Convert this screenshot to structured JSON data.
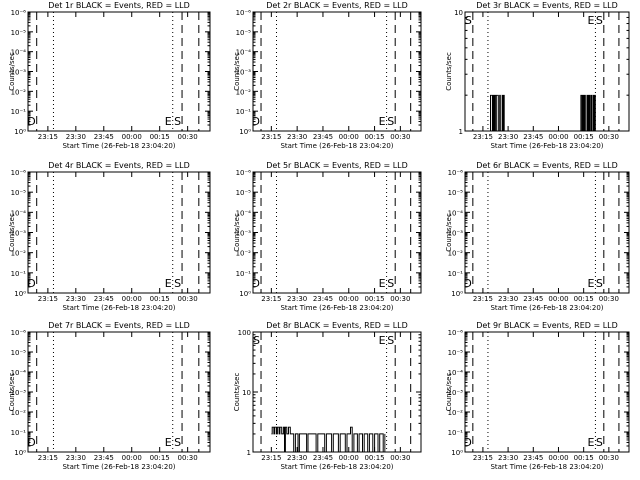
{
  "page": {
    "x_tick_labels": [
      "23:15",
      "23:30",
      "23:45",
      "00:00",
      "00:15",
      "00:30"
    ],
    "ylabel": "Counts/sec",
    "xlabel": "Start Time (26-Feb-18 23:04:20)"
  },
  "chart_data": [
    {
      "type": "line",
      "title": "Det 1r BLACK = Events, RED = LLD",
      "xlabel": "Start Time (26-Feb-18 23:04:20)",
      "ylabel": "Counts/sec",
      "x_range": [
        "23:04:20",
        "00:42:00"
      ],
      "y_scale": "log",
      "ylim": [
        1,
        1e-06
      ],
      "y_tick_labels": [
        "10⁰",
        "10⁻¹",
        "10⁻²",
        "10⁻³",
        "10⁻⁴",
        "10⁻⁵",
        "10⁻⁶"
      ],
      "markers": [
        {
          "label": "D",
          "style": "dashed",
          "x": "23:09"
        },
        {
          "label": "",
          "style": "dotted",
          "x": "23:18"
        },
        {
          "label": "E",
          "style": "dotted",
          "x": "00:22"
        },
        {
          "label": "S",
          "style": "dashed",
          "x": "00:27"
        },
        {
          "label": "",
          "style": "dashed",
          "x": "00:36"
        }
      ],
      "series": []
    },
    {
      "type": "line",
      "title": "Det 2r BLACK = Events, RED = LLD",
      "xlabel": "Start Time (26-Feb-18 23:04:20)",
      "ylabel": "Counts/sec",
      "x_range": [
        "23:04:20",
        "00:42:00"
      ],
      "y_scale": "log",
      "ylim": [
        1,
        1e-06
      ],
      "y_tick_labels": [
        "10⁰",
        "10⁻¹",
        "10⁻²",
        "10⁻³",
        "10⁻⁴",
        "10⁻⁵",
        "10⁻⁶"
      ],
      "markers": [
        {
          "label": "D",
          "style": "dashed",
          "x": "23:09"
        },
        {
          "label": "",
          "style": "dotted",
          "x": "23:18"
        },
        {
          "label": "E",
          "style": "dotted",
          "x": "00:22"
        },
        {
          "label": "S",
          "style": "dashed",
          "x": "00:27"
        },
        {
          "label": "",
          "style": "dashed",
          "x": "00:36"
        }
      ],
      "series": []
    },
    {
      "type": "line",
      "title": "Det 3r BLACK = Events, RED = LLD",
      "xlabel": "Start Time (26-Feb-18 23:04:20)",
      "ylabel": "Counts/sec",
      "x_range": [
        "23:04:20",
        "00:42:00"
      ],
      "y_scale": "log",
      "ylim": [
        1,
        10
      ],
      "y_tick_labels": [
        "1",
        "10"
      ],
      "markers": [
        {
          "label": "S",
          "style": "dashed",
          "x": "23:09"
        },
        {
          "label": "",
          "style": "dotted",
          "x": "23:18"
        },
        {
          "label": "E",
          "style": "dotted",
          "x": "00:22"
        },
        {
          "label": "S",
          "style": "dashed",
          "x": "00:27"
        },
        {
          "label": "",
          "style": "dashed",
          "x": "00:36"
        }
      ],
      "series": [
        {
          "name": "Events",
          "color": "#000000",
          "points": [
            [
              "23:19:00",
              1
            ],
            [
              "23:19:30",
              2
            ],
            [
              "23:20:30",
              2
            ],
            [
              "23:20:40",
              1
            ],
            [
              "23:21:00",
              2
            ],
            [
              "23:21:30",
              1
            ],
            [
              "23:22:00",
              2
            ],
            [
              "23:22:40",
              1
            ],
            [
              "23:23:00",
              2
            ],
            [
              "23:24:00",
              2
            ],
            [
              "23:24:10",
              1
            ],
            [
              "23:25:00",
              2
            ],
            [
              "23:25:20",
              1
            ],
            [
              "23:26:30",
              2
            ],
            [
              "23:26:50",
              1
            ],
            [
              "23:27:20",
              2
            ],
            [
              "23:27:40",
              1
            ],
            [
              "00:13:00",
              1
            ],
            [
              "00:13:20",
              2
            ],
            [
              "00:14:00",
              1
            ],
            [
              "00:14:30",
              2
            ],
            [
              "00:15:00",
              1
            ],
            [
              "00:15:30",
              2
            ],
            [
              "00:16:00",
              1
            ],
            [
              "00:17:00",
              2
            ],
            [
              "00:17:30",
              1
            ],
            [
              "00:18:00",
              2
            ],
            [
              "00:18:30",
              1
            ],
            [
              "00:19:10",
              2
            ],
            [
              "00:19:40",
              1
            ],
            [
              "00:20:30",
              2
            ],
            [
              "00:21:00",
              1
            ],
            [
              "00:21:30",
              2
            ],
            [
              "00:22:00",
              1
            ]
          ]
        }
      ]
    },
    {
      "type": "line",
      "title": "Det 4r BLACK = Events, RED = LLD",
      "xlabel": "Start Time (26-Feb-18 23:04:20)",
      "ylabel": "Counts/sec",
      "x_range": [
        "23:04:20",
        "00:42:00"
      ],
      "y_scale": "log",
      "ylim": [
        1,
        1e-06
      ],
      "y_tick_labels": [
        "10⁰",
        "10⁻¹",
        "10⁻²",
        "10⁻³",
        "10⁻⁴",
        "10⁻⁵",
        "10⁻⁶"
      ],
      "markers": [
        {
          "label": "D",
          "style": "dashed",
          "x": "23:09"
        },
        {
          "label": "",
          "style": "dotted",
          "x": "23:18"
        },
        {
          "label": "E",
          "style": "dotted",
          "x": "00:22"
        },
        {
          "label": "S",
          "style": "dashed",
          "x": "00:27"
        },
        {
          "label": "",
          "style": "dashed",
          "x": "00:36"
        }
      ],
      "series": []
    },
    {
      "type": "line",
      "title": "Det 5r BLACK = Events, RED = LLD",
      "xlabel": "Start Time (26-Feb-18 23:04:20)",
      "ylabel": "Counts/sec",
      "x_range": [
        "23:04:20",
        "00:42:00"
      ],
      "y_scale": "log",
      "ylim": [
        1,
        1e-06
      ],
      "y_tick_labels": [
        "10⁰",
        "10⁻¹",
        "10⁻²",
        "10⁻³",
        "10⁻⁴",
        "10⁻⁵",
        "10⁻⁶"
      ],
      "markers": [
        {
          "label": "D",
          "style": "dashed",
          "x": "23:09"
        },
        {
          "label": "",
          "style": "dotted",
          "x": "23:18"
        },
        {
          "label": "E",
          "style": "dotted",
          "x": "00:22"
        },
        {
          "label": "S",
          "style": "dashed",
          "x": "00:27"
        },
        {
          "label": "",
          "style": "dashed",
          "x": "00:36"
        }
      ],
      "series": []
    },
    {
      "type": "line",
      "title": "Det 6r BLACK = Events, RED = LLD",
      "xlabel": "Start Time (26-Feb-18 23:04:20)",
      "ylabel": "Counts/sec",
      "x_range": [
        "23:04:20",
        "00:42:00"
      ],
      "y_scale": "log",
      "ylim": [
        1,
        1e-06
      ],
      "y_tick_labels": [
        "10⁰",
        "10⁻¹",
        "10⁻²",
        "10⁻³",
        "10⁻⁴",
        "10⁻⁵",
        "10⁻⁶"
      ],
      "markers": [
        {
          "label": "D",
          "style": "dashed",
          "x": "23:09"
        },
        {
          "label": "",
          "style": "dotted",
          "x": "23:18"
        },
        {
          "label": "E",
          "style": "dotted",
          "x": "00:22"
        },
        {
          "label": "S",
          "style": "dashed",
          "x": "00:27"
        },
        {
          "label": "",
          "style": "dashed",
          "x": "00:36"
        }
      ],
      "series": []
    },
    {
      "type": "line",
      "title": "Det 7r BLACK = Events, RED = LLD",
      "xlabel": "Start Time (26-Feb-18 23:04:20)",
      "ylabel": "Counts/sec",
      "x_range": [
        "23:04:20",
        "00:42:00"
      ],
      "y_scale": "log",
      "ylim": [
        1,
        1e-06
      ],
      "y_tick_labels": [
        "10⁰",
        "10⁻¹",
        "10⁻²",
        "10⁻³",
        "10⁻⁴",
        "10⁻⁵",
        "10⁻⁶"
      ],
      "markers": [
        {
          "label": "D",
          "style": "dashed",
          "x": "23:09"
        },
        {
          "label": "",
          "style": "dotted",
          "x": "23:18"
        },
        {
          "label": "E",
          "style": "dotted",
          "x": "00:22"
        },
        {
          "label": "S",
          "style": "dashed",
          "x": "00:27"
        },
        {
          "label": "",
          "style": "dashed",
          "x": "00:36"
        }
      ],
      "series": []
    },
    {
      "type": "line",
      "title": "Det 8r BLACK = Events, RED = LLD",
      "xlabel": "Start Time (26-Feb-18 23:04:20)",
      "ylabel": "Counts/sec",
      "x_range": [
        "23:04:20",
        "00:42:00"
      ],
      "y_scale": "log",
      "ylim": [
        1,
        100
      ],
      "y_tick_labels": [
        "1",
        "10",
        "100"
      ],
      "markers": [
        {
          "label": "S",
          "style": "dashed",
          "x": "23:09"
        },
        {
          "label": "",
          "style": "dotted",
          "x": "23:18"
        },
        {
          "label": "E",
          "style": "dotted",
          "x": "00:22"
        },
        {
          "label": "S",
          "style": "dashed",
          "x": "00:27"
        },
        {
          "label": "",
          "style": "dashed",
          "x": "00:36"
        }
      ],
      "series": [
        {
          "name": "Events",
          "color": "#000000",
          "points": [
            [
              "23:15:00",
              2
            ],
            [
              "23:15:30",
              2.6
            ],
            [
              "23:16:30",
              2
            ],
            [
              "23:17:00",
              2.6
            ],
            [
              "23:18:00",
              2
            ],
            [
              "23:18:30",
              2.6
            ],
            [
              "23:19:30",
              2
            ],
            [
              "23:20:00",
              2.6
            ],
            [
              "23:21:00",
              2
            ],
            [
              "23:22:00",
              2.6
            ],
            [
              "23:22:40",
              1
            ],
            [
              "23:23:10",
              2.6
            ],
            [
              "23:24:00",
              2
            ],
            [
              "23:25:00",
              2.6
            ],
            [
              "23:26:00",
              2
            ],
            [
              "23:27:30",
              2
            ],
            [
              "23:28:00",
              1
            ],
            [
              "23:29:00",
              2
            ],
            [
              "23:30:00",
              2
            ],
            [
              "23:30:30",
              1
            ],
            [
              "23:31:20",
              2
            ],
            [
              "23:35:00",
              2
            ],
            [
              "23:35:30",
              1
            ],
            [
              "23:36:20",
              2
            ],
            [
              "23:40:00",
              2
            ],
            [
              "23:41:00",
              1
            ],
            [
              "23:42:00",
              2
            ],
            [
              "23:45:00",
              2
            ],
            [
              "23:46:00",
              1
            ],
            [
              "23:47:00",
              2
            ],
            [
              "23:50:00",
              1
            ],
            [
              "23:51:00",
              2
            ],
            [
              "23:54:00",
              1
            ],
            [
              "23:55:00",
              2
            ],
            [
              "23:58:00",
              1
            ],
            [
              "23:59:00",
              2
            ],
            [
              "00:01:00",
              2.6
            ],
            [
              "00:02:00",
              1
            ],
            [
              "00:03:00",
              2
            ],
            [
              "00:05:00",
              1
            ],
            [
              "00:06:00",
              2
            ],
            [
              "00:08:00",
              1
            ],
            [
              "00:09:00",
              2
            ],
            [
              "00:11:00",
              1
            ],
            [
              "00:12:00",
              2
            ],
            [
              "00:14:00",
              1
            ],
            [
              "00:15:00",
              2
            ],
            [
              "00:17:00",
              1
            ],
            [
              "00:18:00",
              2
            ],
            [
              "00:20:00",
              1
            ],
            [
              "00:21:00",
              2
            ]
          ]
        }
      ]
    },
    {
      "type": "line",
      "title": "Det 9r BLACK = Events, RED = LLD",
      "xlabel": "Start Time (26-Feb-18 23:04:20)",
      "ylabel": "Counts/sec",
      "x_range": [
        "23:04:20",
        "00:42:00"
      ],
      "y_scale": "log",
      "ylim": [
        1,
        1e-06
      ],
      "y_tick_labels": [
        "10⁰",
        "10⁻¹",
        "10⁻²",
        "10⁻³",
        "10⁻⁴",
        "10⁻⁵",
        "10⁻⁶"
      ],
      "markers": [
        {
          "label": "D",
          "style": "dashed",
          "x": "23:09"
        },
        {
          "label": "",
          "style": "dotted",
          "x": "23:18"
        },
        {
          "label": "E",
          "style": "dotted",
          "x": "00:22"
        },
        {
          "label": "S",
          "style": "dashed",
          "x": "00:27"
        },
        {
          "label": "",
          "style": "dashed",
          "x": "00:36"
        }
      ],
      "series": []
    }
  ]
}
